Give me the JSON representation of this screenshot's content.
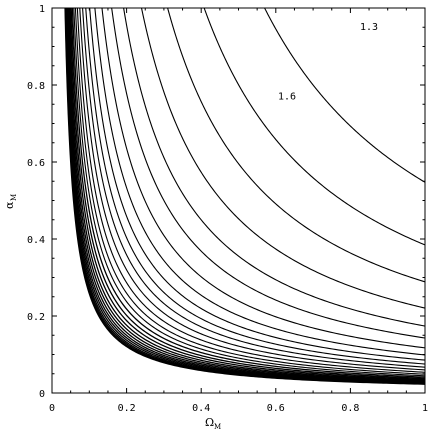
{
  "chart_data": {
    "type": "contour",
    "xlabel": "Ω",
    "xlabel_sub": "M",
    "ylabel": "α",
    "ylabel_sub": "M",
    "xlim": [
      0,
      1
    ],
    "ylim": [
      0,
      1
    ],
    "x_ticks": [
      "0",
      "0.2",
      "0.4",
      "0.6",
      "0.8",
      "1"
    ],
    "x_tick_values": [
      0,
      0.2,
      0.4,
      0.6,
      0.8,
      1
    ],
    "y_ticks": [
      "0",
      "0.2",
      "0.4",
      "0.6",
      "0.8",
      "1"
    ],
    "y_tick_values": [
      0,
      0.2,
      0.4,
      0.6,
      0.8,
      1
    ],
    "contour_labels": [
      {
        "text": "1.3",
        "x": 0.85,
        "y": 0.945
      },
      {
        "text": "1.6",
        "x": 0.63,
        "y": 0.765
      }
    ],
    "contour_count": 28,
    "contour_k_values": [
      0.52,
      0.37,
      0.28,
      0.215,
      0.17,
      0.14,
      0.115,
      0.097,
      0.084,
      0.074,
      0.066,
      0.059,
      0.053,
      0.048,
      0.044,
      0.0405,
      0.0375,
      0.035,
      0.0328,
      0.031,
      0.0294,
      0.028,
      0.0268,
      0.0257,
      0.0247,
      0.0239,
      0.0232,
      0.0226
    ],
    "contour_x0_values": [
      0.05,
      0.038,
      0.03,
      0.025,
      0.022,
      0.02,
      0.019,
      0.018,
      0.017,
      0.0165,
      0.016,
      0.0155,
      0.015,
      0.0148,
      0.0145,
      0.0142,
      0.014,
      0.0138,
      0.0136,
      0.0134,
      0.0132,
      0.013,
      0.0129,
      0.0128,
      0.0127,
      0.0126,
      0.0125,
      0.0124
    ],
    "grid": false,
    "frame": "box"
  }
}
